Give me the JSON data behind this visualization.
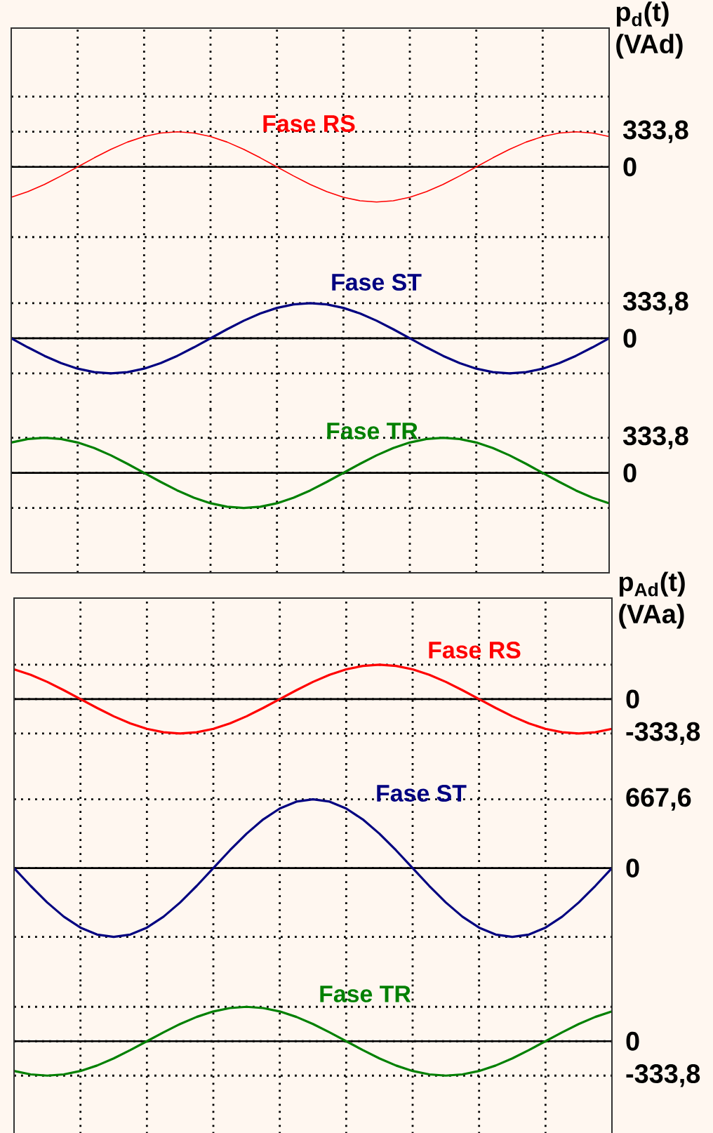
{
  "chart_data": [
    {
      "type": "line",
      "ylabel": "p$_{d}$(t) (VAd)",
      "categories": [
        null,
        null,
        null,
        null,
        null,
        null,
        null,
        null,
        null,
        null,
        null,
        null,
        null,
        null,
        null,
        null,
        null,
        null,
        null,
        null,
        null,
        null,
        null,
        null,
        null,
        null,
        null,
        null,
        null,
        null,
        null,
        null,
        null,
        null,
        null,
        null,
        null
      ],
      "series": [
        {
          "name": "Fase RS",
          "color": "#ff0000",
          "values": [
            -289,
            -236,
            -167,
            -86,
            0,
            86,
            167,
            236,
            289,
            322,
            333.8,
            322,
            289,
            236,
            167,
            86,
            0,
            -86,
            -167,
            -236,
            -289,
            -322,
            -333.8,
            -322,
            -289,
            -236,
            -167,
            -86,
            0,
            86,
            167,
            236,
            289,
            322,
            333.8,
            322,
            289
          ]
        }
      ],
      "ylim": [
        -850,
        1320
      ],
      "yticks": [
        {
          "value": -667.6,
          "label": null
        },
        0,
        {
          "value": 333.8,
          "label": "333,8"
        },
        {
          "value": 667.6,
          "label": null
        }
      ],
      "ref_lines": [
        {
          "axis": "y",
          "value": 0,
          "color": "#000000"
        }
      ],
      "grid": true,
      "tick_labels": "y"
    },
    {
      "type": "line",
      "categories": [
        null,
        null,
        null,
        null,
        null,
        null,
        null,
        null,
        null,
        null,
        null,
        null,
        null,
        null,
        null,
        null,
        null,
        null,
        null,
        null,
        null,
        null,
        null,
        null,
        null,
        null,
        null,
        null,
        null,
        null,
        null,
        null,
        null,
        null,
        null,
        null,
        null
      ],
      "series": [
        {
          "name": "Fase ST",
          "color": "#000080",
          "values": [
            0,
            -86,
            -167,
            -236,
            -289,
            -322,
            -333.8,
            -322,
            -289,
            -236,
            -167,
            -86,
            0,
            86,
            167,
            236,
            289,
            322,
            333.8,
            322,
            289,
            236,
            167,
            86,
            0,
            -86,
            -167,
            -236,
            -289,
            -322,
            -333.8,
            -322,
            -289,
            -236,
            -167,
            -86,
            0
          ]
        }
      ],
      "ylim": [
        -680,
        780
      ],
      "yticks": [
        {
          "value": -333.8,
          "label": null
        },
        0,
        {
          "value": 333.8,
          "label": "333,8"
        }
      ],
      "ref_lines": [
        {
          "axis": "y",
          "value": 0,
          "color": "#000000"
        }
      ],
      "grid": true,
      "tick_labels": "y"
    },
    {
      "type": "line",
      "categories": [
        null,
        null,
        null,
        null,
        null,
        null,
        null,
        null,
        null,
        null,
        null,
        null,
        null,
        null,
        null,
        null,
        null,
        null,
        null,
        null,
        null,
        null,
        null,
        null,
        null,
        null,
        null,
        null,
        null,
        null,
        null,
        null,
        null,
        null,
        null,
        null,
        null
      ],
      "series": [
        {
          "name": "Fase TR",
          "color": "#008000",
          "values": [
            289,
            322,
            333.8,
            322,
            289,
            236,
            167,
            86,
            0,
            -86,
            -167,
            -236,
            -289,
            -322,
            -333.8,
            -322,
            -289,
            -236,
            -167,
            -86,
            0,
            86,
            167,
            236,
            289,
            322,
            333.8,
            322,
            289,
            236,
            167,
            86,
            0,
            -86,
            -167,
            -236,
            -289
          ]
        }
      ],
      "ylim": [
        -950,
        600
      ],
      "yticks": [
        {
          "value": -333.8,
          "label": null
        },
        0,
        {
          "value": 333.8,
          "label": "333,8"
        }
      ],
      "ref_lines": [
        {
          "axis": "y",
          "value": 0,
          "color": "#000000"
        }
      ],
      "grid": true,
      "tick_labels": "y"
    },
    {
      "type": "line",
      "ylabel": "p$_{Ad}$(t) (VAa)",
      "categories": [
        null,
        null,
        null,
        null,
        null,
        null,
        null,
        null,
        null,
        null,
        null,
        null,
        null,
        null,
        null,
        null,
        null,
        null,
        null,
        null,
        null,
        null,
        null,
        null,
        null,
        null,
        null,
        null,
        null,
        null,
        null,
        null,
        null,
        null,
        null,
        null,
        null
      ],
      "series": [
        {
          "name": "Fase RS",
          "color": "#ff0000",
          "values": [
            289,
            236,
            167,
            86,
            0,
            -86,
            -167,
            -236,
            -289,
            -322,
            -333.8,
            -322,
            -289,
            -236,
            -167,
            -86,
            0,
            86,
            167,
            236,
            289,
            322,
            333.8,
            322,
            289,
            236,
            167,
            86,
            0,
            -86,
            -167,
            -236,
            -289,
            -322,
            -333.8,
            -322,
            -289
          ]
        }
      ],
      "ylim": [
        -640,
        980
      ],
      "yticks": [
        {
          "value": -333.8,
          "label": "-333,8"
        },
        0,
        {
          "value": 333.8,
          "label": null
        }
      ],
      "ref_lines": [
        {
          "axis": "y",
          "value": 0,
          "color": "#000000"
        }
      ],
      "grid": true,
      "tick_labels": "y"
    },
    {
      "type": "line",
      "categories": [
        null,
        null,
        null,
        null,
        null,
        null,
        null,
        null,
        null,
        null,
        null,
        null,
        null,
        null,
        null,
        null,
        null,
        null,
        null,
        null,
        null,
        null,
        null,
        null,
        null,
        null,
        null,
        null,
        null,
        null,
        null,
        null,
        null,
        null,
        null,
        null,
        null
      ],
      "series": [
        {
          "name": "Fase ST",
          "color": "#000080",
          "values": [
            0,
            -173,
            -333.8,
            -472,
            -578,
            -645,
            -667.6,
            -645,
            -578,
            -472,
            -333.8,
            -173,
            0,
            173,
            333.8,
            472,
            578,
            645,
            667.6,
            645,
            578,
            472,
            333.8,
            173,
            0,
            -173,
            -333.8,
            -472,
            -578,
            -645,
            -667.6,
            -645,
            -578,
            -472,
            -333.8,
            -173,
            0
          ]
        }
      ],
      "ylim": [
        -1100,
        1000
      ],
      "yticks": [
        {
          "value": -667.6,
          "label": null
        },
        0,
        {
          "value": 667.6,
          "label": "667,6"
        }
      ],
      "ref_lines": [
        {
          "axis": "y",
          "value": 0,
          "color": "#000000"
        }
      ],
      "grid": true,
      "tick_labels": "y"
    },
    {
      "type": "line",
      "categories": [
        null,
        null,
        null,
        null,
        null,
        null,
        null,
        null,
        null,
        null,
        null,
        null,
        null,
        null,
        null,
        null,
        null,
        null,
        null,
        null,
        null,
        null,
        null,
        null,
        null,
        null,
        null,
        null,
        null,
        null,
        null,
        null,
        null,
        null,
        null,
        null,
        null
      ],
      "series": [
        {
          "name": "Fase TR",
          "color": "#008000",
          "values": [
            -289,
            -322,
            -333.8,
            -322,
            -289,
            -236,
            -167,
            -86,
            0,
            86,
            167,
            236,
            289,
            322,
            333.8,
            322,
            289,
            236,
            167,
            86,
            0,
            -86,
            -167,
            -236,
            -289,
            -322,
            -333.8,
            -322,
            -289,
            -236,
            -167,
            -86,
            0,
            86,
            167,
            236,
            289
          ]
        }
      ],
      "ylim": [
        -900,
        580
      ],
      "yticks": [
        {
          "value": -333.8,
          "label": "-333,8"
        },
        0,
        {
          "value": 333.8,
          "label": null
        }
      ],
      "ref_lines": [
        {
          "axis": "y",
          "value": 0,
          "color": "#000000"
        }
      ],
      "grid": true,
      "tick_labels": "y"
    }
  ]
}
